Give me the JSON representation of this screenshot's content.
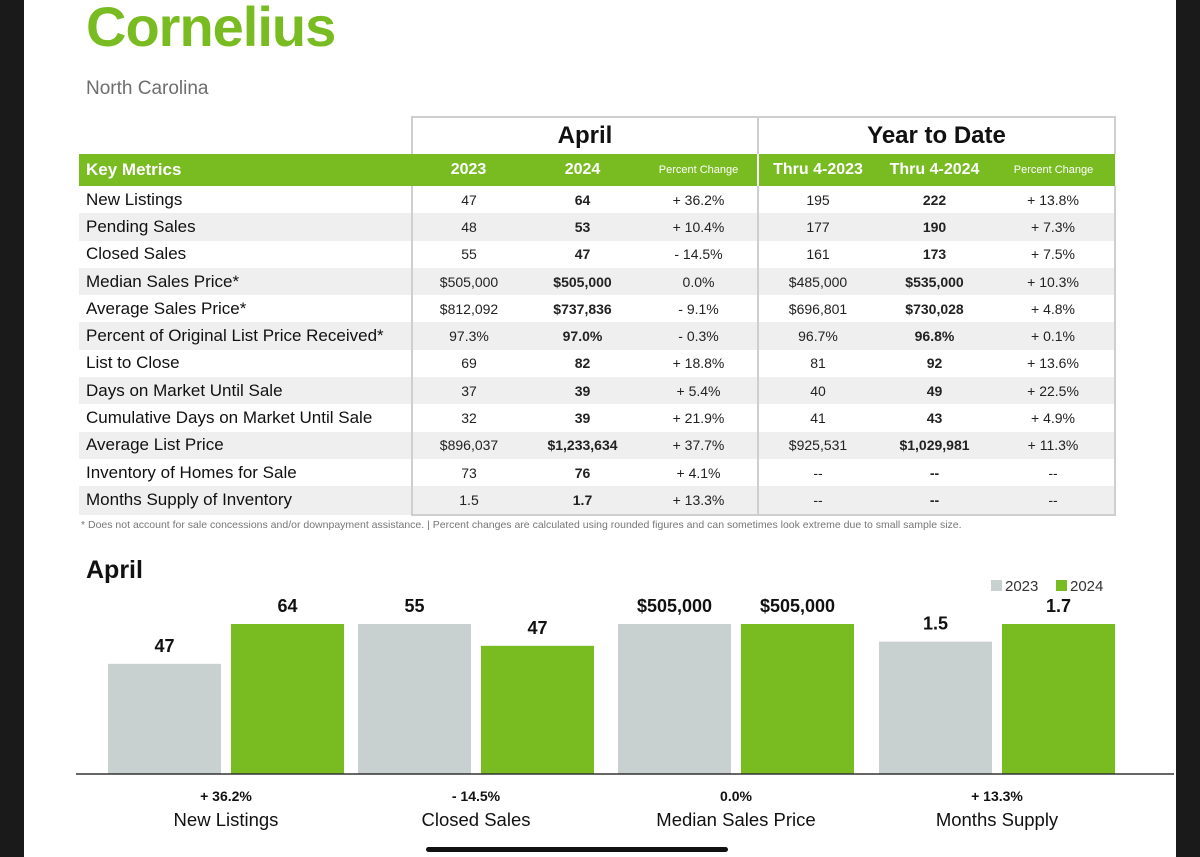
{
  "header": {
    "title": "Cornelius",
    "subtitle": "North Carolina"
  },
  "table": {
    "group_april": "April",
    "group_ytd": "Year to Date",
    "columns": {
      "key_metrics": "Key Metrics",
      "a2023": "2023",
      "a2024": "2024",
      "a_pct": "Percent Change",
      "y2023": "Thru 4-2023",
      "y2024": "Thru 4-2024",
      "y_pct": "Percent Change"
    },
    "rows": [
      {
        "label": "New Listings",
        "a2023": "47",
        "a2024": "64",
        "a_pct": "+ 36.2%",
        "y2023": "195",
        "y2024": "222",
        "y_pct": "+ 13.8%"
      },
      {
        "label": "Pending Sales",
        "a2023": "48",
        "a2024": "53",
        "a_pct": "+ 10.4%",
        "y2023": "177",
        "y2024": "190",
        "y_pct": "+ 7.3%"
      },
      {
        "label": "Closed Sales",
        "a2023": "55",
        "a2024": "47",
        "a_pct": "- 14.5%",
        "y2023": "161",
        "y2024": "173",
        "y_pct": "+ 7.5%"
      },
      {
        "label": "Median Sales Price*",
        "a2023": "$505,000",
        "a2024": "$505,000",
        "a_pct": "0.0%",
        "y2023": "$485,000",
        "y2024": "$535,000",
        "y_pct": "+ 10.3%"
      },
      {
        "label": "Average Sales Price*",
        "a2023": "$812,092",
        "a2024": "$737,836",
        "a_pct": "- 9.1%",
        "y2023": "$696,801",
        "y2024": "$730,028",
        "y_pct": "+ 4.8%"
      },
      {
        "label": "Percent of Original List Price Received*",
        "a2023": "97.3%",
        "a2024": "97.0%",
        "a_pct": "- 0.3%",
        "y2023": "96.7%",
        "y2024": "96.8%",
        "y_pct": "+ 0.1%"
      },
      {
        "label": "List to Close",
        "a2023": "69",
        "a2024": "82",
        "a_pct": "+ 18.8%",
        "y2023": "81",
        "y2024": "92",
        "y_pct": "+ 13.6%"
      },
      {
        "label": "Days on Market Until Sale",
        "a2023": "37",
        "a2024": "39",
        "a_pct": "+ 5.4%",
        "y2023": "40",
        "y2024": "49",
        "y_pct": "+ 22.5%"
      },
      {
        "label": "Cumulative Days on Market Until Sale",
        "a2023": "32",
        "a2024": "39",
        "a_pct": "+ 21.9%",
        "y2023": "41",
        "y2024": "43",
        "y_pct": "+ 4.9%"
      },
      {
        "label": "Average List Price",
        "a2023": "$896,037",
        "a2024": "$1,233,634",
        "a_pct": "+ 37.7%",
        "y2023": "$925,531",
        "y2024": "$1,029,981",
        "y_pct": "+ 11.3%"
      },
      {
        "label": "Inventory of Homes for Sale",
        "a2023": "73",
        "a2024": "76",
        "a_pct": "+ 4.1%",
        "y2023": "--",
        "y2024": "--",
        "y_pct": "--"
      },
      {
        "label": "Months Supply of Inventory",
        "a2023": "1.5",
        "a2024": "1.7",
        "a_pct": "+ 13.3%",
        "y2023": "--",
        "y2024": "--",
        "y_pct": "--"
      }
    ]
  },
  "footnote": "* Does not account for sale concessions and/or downpayment assistance.  |  Percent changes are calculated using rounded figures and can sometimes look extreme due to small sample size.",
  "colors": {
    "accent_green": "#78bc21",
    "bar_2023": "#c8d0d0",
    "bar_2024": "#78bc21"
  },
  "chart_data": {
    "type": "bar",
    "title": "April",
    "legend_position": "top-right",
    "grid": false,
    "normalization": "per-category",
    "categories": [
      "New Listings",
      "Closed Sales",
      "Median Sales Price",
      "Months Supply"
    ],
    "series": [
      {
        "name": "2023",
        "values": [
          47,
          55,
          505000,
          1.5
        ],
        "labels": [
          "47",
          "55",
          "$505,000",
          "1.5"
        ]
      },
      {
        "name": "2024",
        "values": [
          64,
          47,
          505000,
          1.7
        ],
        "labels": [
          "64",
          "47",
          "$505,000",
          "1.7"
        ]
      }
    ],
    "percent_change": [
      "+ 36.2%",
      "- 14.5%",
      "0.0%",
      "+ 13.3%"
    ]
  }
}
